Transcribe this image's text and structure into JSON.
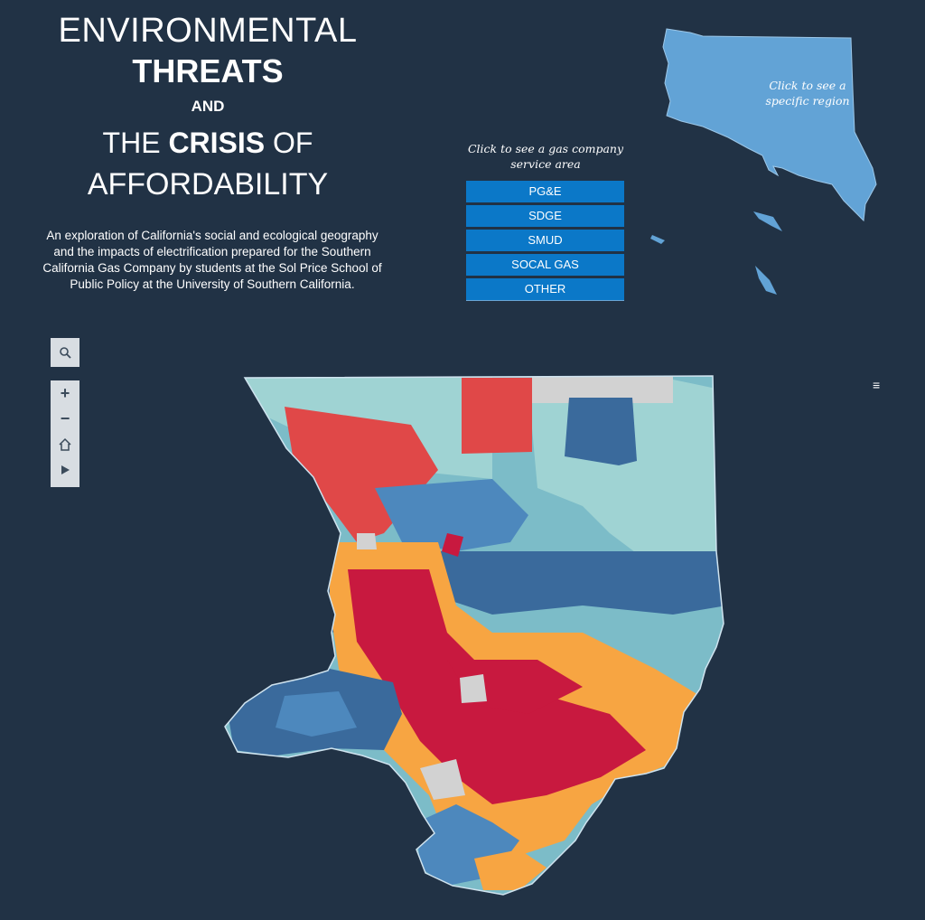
{
  "title": {
    "line1": "ENVIRONMENTAL",
    "line2": "THREATS",
    "line3": "AND",
    "line4_pre": "THE ",
    "line4_bold": "CRISIS",
    "line4_post": " OF",
    "line5": "AFFORDABILITY"
  },
  "description": "An exploration of California's social and ecological geography and the impacts of electrification prepared for the Southern California Gas Company by students at the Sol Price School of Public Policy at the University of Southern California.",
  "gas_service": {
    "prompt": "Click to see a gas company service area",
    "buttons": [
      "PG&E",
      "SDGE",
      "SMUD",
      "SOCAL GAS",
      "OTHER"
    ]
  },
  "region_selector": {
    "label": "Click to see a specific region"
  },
  "map_tools": {
    "search_icon": "magnifier-icon",
    "zoom_in": "+",
    "zoom_out": "−",
    "home_icon": "home-icon",
    "play_icon": "play-icon"
  },
  "menu_icon": "≡",
  "colors": {
    "background": "#213245",
    "button": "#0b78c8",
    "region_fill": "#62a3d6",
    "map_dark_red": "#c8193f",
    "map_red": "#e04848",
    "map_orange": "#f7a542",
    "map_steel_blue": "#3a6a9c",
    "map_mid_blue": "#4d88bd",
    "map_light_teal": "#9fd3d3",
    "map_teal": "#7cbcc8",
    "map_grey": "#d2d2d2"
  }
}
